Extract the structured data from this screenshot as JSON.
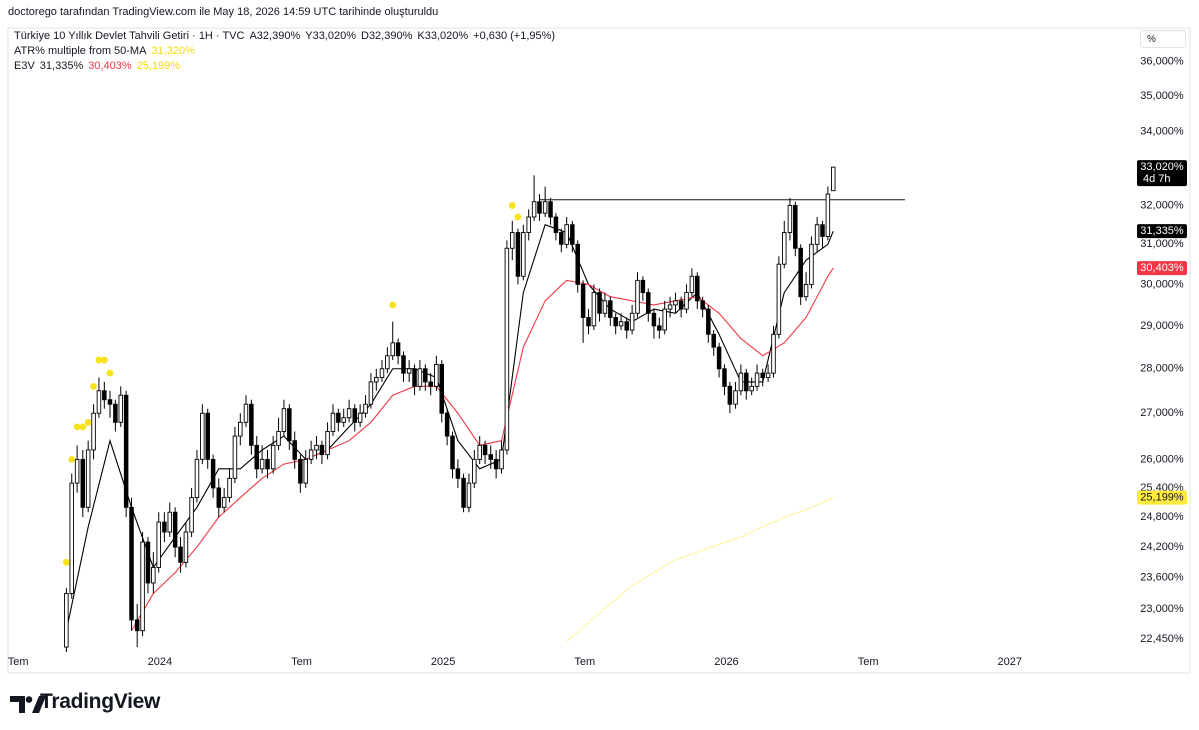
{
  "header": "doctorego tarafından TradingView.com ile May 18, 2026 14:59 UTC tarihinde oluşturuldu",
  "footer": "TradingView",
  "percent_button": "%",
  "chart_data": {
    "type": "candlestick",
    "legend": {
      "symbol": "Türkiye 10 Yıllık Devlet Tahvili Getiri · 1H · TVC",
      "ohlc": [
        "A32,390%",
        "Y33,020%",
        "D32,390%",
        "K33,020%"
      ],
      "change": "+0,630 (+1,95%)",
      "atr_name": "ATR% multiple from 50-MA",
      "atr_value": {
        "value": 31.32,
        "label": "31,320%",
        "color": "#f5d90a"
      },
      "e3v_name": "E3V",
      "e3v_values": [
        {
          "value": 31.335,
          "label": "31,335%",
          "color": "#131722"
        },
        {
          "value": 30.403,
          "label": "30,403%",
          "color": "#f23645"
        },
        {
          "value": 25.199,
          "label": "25,199%",
          "color": "#f5d90a"
        }
      ]
    },
    "log_scale": true,
    "grid": false,
    "xlim": [
      2023.464,
      2027.435
    ],
    "ylim": [
      22.21,
      37.0
    ],
    "xticks": [
      {
        "value": 2023.5,
        "label": "Tem"
      },
      2024,
      {
        "value": 2024.5,
        "label": "Tem"
      },
      2025,
      {
        "value": 2025.5,
        "label": "Tem"
      },
      2026,
      {
        "value": 2026.5,
        "label": "Tem"
      },
      2027
    ],
    "yticks": [
      {
        "value": 36,
        "label": "36,000%"
      },
      {
        "value": 35,
        "label": "35,000%"
      },
      {
        "value": 34,
        "label": "34,000%"
      },
      {
        "value": 33,
        "label": "33,000%"
      },
      {
        "value": 32,
        "label": "32,000%"
      },
      {
        "value": 31,
        "label": "31,000%"
      },
      {
        "value": 30,
        "label": "30,000%"
      },
      {
        "value": 29,
        "label": "29,000%"
      },
      {
        "value": 28,
        "label": "28,000%"
      },
      {
        "value": 27,
        "label": "27,000%"
      },
      {
        "value": 26,
        "label": "26,000%"
      },
      {
        "value": 25.4,
        "label": "25,400%"
      },
      {
        "value": 24.8,
        "label": "24,800%"
      },
      {
        "value": 24.2,
        "label": "24,200%"
      },
      {
        "value": 23.6,
        "label": "23,600%"
      },
      {
        "value": 23.0,
        "label": "23,000%"
      },
      {
        "value": 22.45,
        "label": "22,450%"
      }
    ],
    "up_color": "#ffffff",
    "down_color": "#000000",
    "x": [
      2023.67,
      2023.689,
      2023.708,
      2023.728,
      2023.747,
      2023.766,
      2023.785,
      2023.804,
      2023.824,
      2023.843,
      2023.862,
      2023.881,
      2023.9,
      2023.92,
      2023.939,
      2023.958,
      2023.977,
      2023.996,
      2024.016,
      2024.035,
      2024.054,
      2024.073,
      2024.092,
      2024.112,
      2024.131,
      2024.15,
      2024.169,
      2024.188,
      2024.208,
      2024.227,
      2024.246,
      2024.265,
      2024.284,
      2024.304,
      2024.323,
      2024.342,
      2024.361,
      2024.38,
      2024.4,
      2024.419,
      2024.438,
      2024.457,
      2024.476,
      2024.496,
      2024.515,
      2024.534,
      2024.553,
      2024.572,
      2024.592,
      2024.611,
      2024.63,
      2024.649,
      2024.668,
      2024.688,
      2024.707,
      2024.726,
      2024.745,
      2024.764,
      2024.784,
      2024.803,
      2024.822,
      2024.841,
      2024.86,
      2024.88,
      2024.899,
      2024.918,
      2024.937,
      2024.956,
      2024.976,
      2024.995,
      2025.014,
      2025.033,
      2025.052,
      2025.072,
      2025.091,
      2025.11,
      2025.129,
      2025.148,
      2025.168,
      2025.187,
      2025.206,
      2025.225,
      2025.244,
      2025.264,
      2025.283,
      2025.302,
      2025.321,
      2025.34,
      2025.36,
      2025.379,
      2025.398,
      2025.417,
      2025.436,
      2025.456,
      2025.475,
      2025.494,
      2025.513,
      2025.532,
      2025.552,
      2025.571,
      2025.59,
      2025.609,
      2025.628,
      2025.648,
      2025.667,
      2025.686,
      2025.705,
      2025.724,
      2025.744,
      2025.763,
      2025.782,
      2025.801,
      2025.82,
      2025.84,
      2025.859,
      2025.878,
      2025.897,
      2025.916,
      2025.936,
      2025.955,
      2025.974,
      2025.993,
      2026.012,
      2026.032,
      2026.051,
      2026.07,
      2026.089,
      2026.108,
      2026.128,
      2026.147,
      2026.166,
      2026.185,
      2026.204,
      2026.224,
      2026.243,
      2026.262,
      2026.281,
      2026.3,
      2026.32,
      2026.339,
      2026.358,
      2026.377
    ],
    "open": [
      22.3,
      23.3,
      25.5,
      26.0,
      25.0,
      26.2,
      27.0,
      27.5,
      27.3,
      27.2,
      26.8,
      27.4,
      25.0,
      22.8,
      22.6,
      24.3,
      23.5,
      23.8,
      24.7,
      24.5,
      24.9,
      24.2,
      23.9,
      24.5,
      25.2,
      26.0,
      27.0,
      26.0,
      25.4,
      25.0,
      25.2,
      25.6,
      26.5,
      26.8,
      27.2,
      26.3,
      25.8,
      26.0,
      25.8,
      26.3,
      26.6,
      27.1,
      26.4,
      26.0,
      25.5,
      26.0,
      26.2,
      26.3,
      26.1,
      26.6,
      27.0,
      26.8,
      26.9,
      27.1,
      26.8,
      27.0,
      27.2,
      27.7,
      27.8,
      28.0,
      28.3,
      28.6,
      28.3,
      27.9,
      28.0,
      27.6,
      28.0,
      27.7,
      27.6,
      28.1,
      27.0,
      26.5,
      25.8,
      25.6,
      25.0,
      25.5,
      26.0,
      26.3,
      26.1,
      26.0,
      25.8,
      26.2,
      30.9,
      31.3,
      30.2,
      31.3,
      31.7,
      32.1,
      31.8,
      32.1,
      31.7,
      31.3,
      31.0,
      31.5,
      31.0,
      30.0,
      29.2,
      29.0,
      29.8,
      29.3,
      29.6,
      29.2,
      29.0,
      29.1,
      28.9,
      29.3,
      30.1,
      29.8,
      29.3,
      29.0,
      28.9,
      29.4,
      29.5,
      29.6,
      29.4,
      29.8,
      30.2,
      29.6,
      29.4,
      28.8,
      28.5,
      28.0,
      27.6,
      27.2,
      27.5,
      27.9,
      27.5,
      27.6,
      27.9,
      27.8,
      27.9,
      28.8,
      30.5,
      31.3,
      32.0,
      30.9,
      29.7,
      30.0,
      31.0,
      31.5,
      31.2,
      32.39
    ],
    "high": [
      23.4,
      25.7,
      26.3,
      26.2,
      26.4,
      27.2,
      27.8,
      27.7,
      27.5,
      27.3,
      27.6,
      27.5,
      25.2,
      23.1,
      24.5,
      24.4,
      24.1,
      24.9,
      24.9,
      25.1,
      25.0,
      24.4,
      24.7,
      25.4,
      26.2,
      27.2,
      27.1,
      26.1,
      25.6,
      25.4,
      25.8,
      26.7,
      27.0,
      27.4,
      27.3,
      26.5,
      26.3,
      26.2,
      26.5,
      26.9,
      27.3,
      27.2,
      26.6,
      26.1,
      26.2,
      26.4,
      26.5,
      26.4,
      26.8,
      27.2,
      27.1,
      27.1,
      27.3,
      27.2,
      27.2,
      27.4,
      27.9,
      28.0,
      28.2,
      28.5,
      29.1,
      28.7,
      28.4,
      28.2,
      28.1,
      28.2,
      28.1,
      27.9,
      28.3,
      28.2,
      27.1,
      26.6,
      26.0,
      25.7,
      25.7,
      26.2,
      26.5,
      26.4,
      26.3,
      26.2,
      26.4,
      31.1,
      31.6,
      31.4,
      31.5,
      31.9,
      32.8,
      32.3,
      32.5,
      32.2,
      31.8,
      31.4,
      31.7,
      31.6,
      31.1,
      30.1,
      29.4,
      30.0,
      29.9,
      29.8,
      29.7,
      29.3,
      29.3,
      29.2,
      29.5,
      30.3,
      30.2,
      29.9,
      29.4,
      29.2,
      29.6,
      29.7,
      29.8,
      29.7,
      30.0,
      30.4,
      30.3,
      29.7,
      29.5,
      28.9,
      28.6,
      28.1,
      27.7,
      27.7,
      28.1,
      28.0,
      27.8,
      28.1,
      28.0,
      28.1,
      29.0,
      30.7,
      31.6,
      32.2,
      32.1,
      31.0,
      30.3,
      31.2,
      31.7,
      31.6,
      32.5,
      33.02
    ],
    "low": [
      21.9,
      23.2,
      25.3,
      24.8,
      24.9,
      26.0,
      26.9,
      27.1,
      26.9,
      26.6,
      26.7,
      24.8,
      22.6,
      22.3,
      22.5,
      23.3,
      23.3,
      23.7,
      24.3,
      24.4,
      24.0,
      23.7,
      23.8,
      24.4,
      25.1,
      25.9,
      25.8,
      25.2,
      24.8,
      24.9,
      25.1,
      25.5,
      26.3,
      26.7,
      26.1,
      25.6,
      25.7,
      25.6,
      25.7,
      26.2,
      26.5,
      26.2,
      25.8,
      25.3,
      25.4,
      25.9,
      26.0,
      25.9,
      26.0,
      26.5,
      26.6,
      26.7,
      26.8,
      26.6,
      26.7,
      26.9,
      27.1,
      27.5,
      27.7,
      27.9,
      28.2,
      28.1,
      27.7,
      27.7,
      27.4,
      27.5,
      27.5,
      27.4,
      27.5,
      26.8,
      26.3,
      25.6,
      25.4,
      24.9,
      24.9,
      25.4,
      25.9,
      25.9,
      25.8,
      25.6,
      25.7,
      26.1,
      30.6,
      30.0,
      30.1,
      31.1,
      31.6,
      31.6,
      31.7,
      31.5,
      31.1,
      30.8,
      30.9,
      30.8,
      29.8,
      28.6,
      28.8,
      28.9,
      29.1,
      29.2,
      29.0,
      28.8,
      28.9,
      28.7,
      28.8,
      29.2,
      29.6,
      29.1,
      28.7,
      28.7,
      28.8,
      29.2,
      29.3,
      29.2,
      29.3,
      29.7,
      29.4,
      29.2,
      28.6,
      28.3,
      27.8,
      27.4,
      27.0,
      27.1,
      27.4,
      27.3,
      27.4,
      27.5,
      27.6,
      27.7,
      27.8,
      28.7,
      30.4,
      31.1,
      30.7,
      29.5,
      29.6,
      29.9,
      30.8,
      30.9,
      31.1,
      32.39
    ],
    "close": [
      23.3,
      25.5,
      26.0,
      25.0,
      26.2,
      27.0,
      27.5,
      27.3,
      27.2,
      26.8,
      27.4,
      25.0,
      22.8,
      22.6,
      24.3,
      23.5,
      23.8,
      24.7,
      24.5,
      24.9,
      24.2,
      23.9,
      24.5,
      25.2,
      26.0,
      27.0,
      26.0,
      25.4,
      25.0,
      25.2,
      25.6,
      26.5,
      26.8,
      27.2,
      26.3,
      25.8,
      26.0,
      25.8,
      26.3,
      26.6,
      27.1,
      26.4,
      26.0,
      25.5,
      26.0,
      26.2,
      26.3,
      26.1,
      26.6,
      27.0,
      26.8,
      26.9,
      27.1,
      26.8,
      27.0,
      27.2,
      27.7,
      27.8,
      28.0,
      28.3,
      28.6,
      28.3,
      27.9,
      28.0,
      27.6,
      28.0,
      27.7,
      27.6,
      28.1,
      27.0,
      26.5,
      25.8,
      25.6,
      25.0,
      25.5,
      26.0,
      26.3,
      26.1,
      26.0,
      25.8,
      26.2,
      30.9,
      31.3,
      30.2,
      31.3,
      31.7,
      32.1,
      31.8,
      32.1,
      31.7,
      31.3,
      31.0,
      31.5,
      31.0,
      30.0,
      29.2,
      29.0,
      29.8,
      29.3,
      29.6,
      29.2,
      29.0,
      29.1,
      28.9,
      29.3,
      30.1,
      29.8,
      29.3,
      29.0,
      28.9,
      29.4,
      29.5,
      29.6,
      29.4,
      29.8,
      30.2,
      29.6,
      29.4,
      28.8,
      28.5,
      28.0,
      27.6,
      27.2,
      27.5,
      27.9,
      27.5,
      27.6,
      27.9,
      27.8,
      27.9,
      28.8,
      30.5,
      31.3,
      32.0,
      30.9,
      29.7,
      30.0,
      31.0,
      31.5,
      31.2,
      32.3,
      33.02
    ],
    "lines": {
      "x": [
        2023.67,
        2023.747,
        2023.824,
        2023.9,
        2023.977,
        2024.054,
        2024.131,
        2024.208,
        2024.284,
        2024.361,
        2024.438,
        2024.515,
        2024.592,
        2024.668,
        2024.745,
        2024.822,
        2024.899,
        2024.976,
        2025.052,
        2025.129,
        2025.206,
        2025.283,
        2025.36,
        2025.436,
        2025.513,
        2025.59,
        2025.667,
        2025.744,
        2025.82,
        2025.897,
        2025.974,
        2026.051,
        2026.128,
        2026.204,
        2026.281,
        2026.358,
        2026.377
      ],
      "series": [
        {
          "color": "#000000",
          "values": [
            22.6,
            24.6,
            26.4,
            25.0,
            23.8,
            24.4,
            25.0,
            25.8,
            25.8,
            26.2,
            26.5,
            26.0,
            26.2,
            26.7,
            27.2,
            28.0,
            28.0,
            27.8,
            26.4,
            25.8,
            26.0,
            29.8,
            31.5,
            31.3,
            30.0,
            29.4,
            29.1,
            29.4,
            29.3,
            29.8,
            28.8,
            27.7,
            27.7,
            29.8,
            30.6,
            31.0,
            31.335
          ]
        },
        {
          "color": "#f23645",
          "values": [
            null,
            null,
            null,
            22.6,
            23.3,
            23.7,
            24.2,
            24.8,
            25.2,
            25.6,
            25.9,
            26.0,
            26.2,
            26.4,
            26.8,
            27.4,
            27.6,
            27.6,
            27.0,
            26.3,
            26.4,
            28.5,
            29.6,
            30.1,
            30.0,
            29.7,
            29.6,
            29.5,
            29.6,
            29.7,
            29.3,
            28.7,
            28.3,
            28.6,
            29.2,
            30.2,
            30.403
          ]
        },
        {
          "color": "#fff59d",
          "values": [
            null,
            null,
            null,
            null,
            null,
            null,
            null,
            null,
            null,
            null,
            null,
            null,
            null,
            null,
            null,
            null,
            null,
            null,
            null,
            null,
            null,
            null,
            null,
            22.4,
            22.75,
            23.1,
            23.45,
            23.7,
            23.95,
            24.1,
            24.25,
            24.4,
            24.6,
            24.8,
            24.95,
            25.15,
            25.199
          ]
        }
      ]
    },
    "markers": {
      "color": "#f7e21b",
      "x": [
        2023.67,
        2023.689,
        2023.708,
        2023.728,
        2023.747,
        2023.766,
        2023.785,
        2023.804,
        2023.824,
        2024.822,
        2025.244,
        2025.264
      ],
      "values": [
        23.9,
        26.0,
        26.7,
        26.7,
        26.8,
        27.6,
        28.2,
        28.2,
        27.9,
        29.5,
        32.0,
        31.7
      ]
    },
    "hline": {
      "value": 32.15,
      "x": [
        2025.341,
        2026.63
      ],
      "color": "#131722"
    },
    "price_labels": [
      {
        "value": 33.02,
        "label": "33,020%",
        "color": "#000000",
        "text_color": "#ffffff"
      },
      {
        "value": 31.335,
        "label": "31,335%",
        "color": "#000000",
        "text_color": "#ffffff"
      },
      {
        "value": 30.403,
        "label": "30,403%",
        "color": "#f23645",
        "text_color": "#ffffff"
      },
      {
        "value": 25.199,
        "label": "25,199%",
        "color": "#ffeb3b",
        "text_color": "#131722"
      }
    ],
    "countdown": "4d 7h"
  }
}
